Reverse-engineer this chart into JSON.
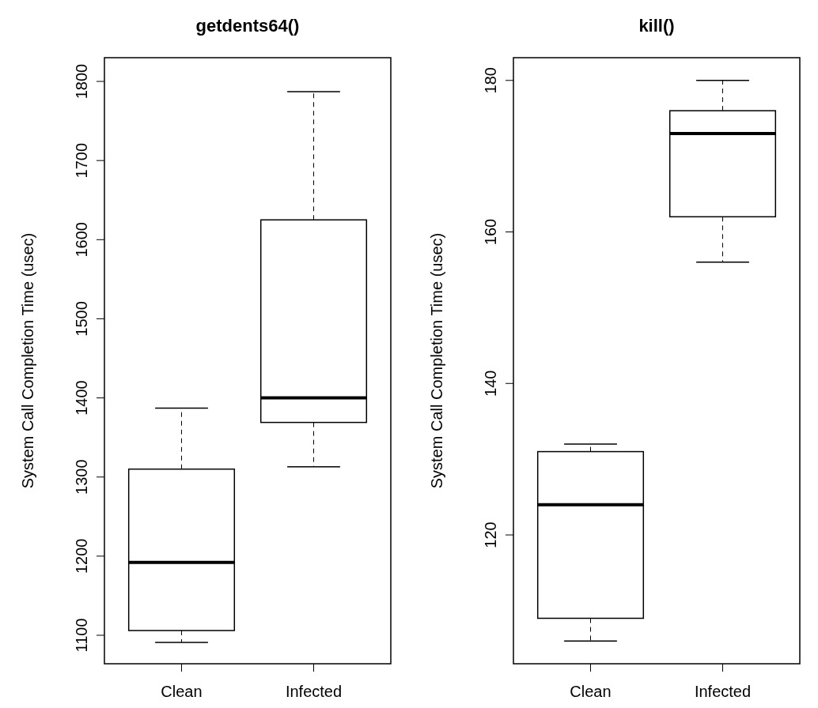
{
  "chart_data": [
    {
      "type": "box",
      "title": "getdents64()",
      "ylabel": "System Call Completion Time (usec)",
      "categories": [
        "Clean",
        "Infected"
      ],
      "ylim": [
        1064,
        1830
      ],
      "yticks": [
        1100,
        1200,
        1300,
        1400,
        1500,
        1600,
        1700,
        1800
      ],
      "grid": false,
      "boxes": [
        {
          "low": 1091,
          "q1": 1106,
          "median": 1192,
          "q3": 1310,
          "high": 1387
        },
        {
          "low": 1313,
          "q1": 1369,
          "median": 1400,
          "q3": 1625,
          "high": 1787
        }
      ]
    },
    {
      "type": "box",
      "title": "kill()",
      "ylabel": "System Call Completion Time (usec)",
      "categories": [
        "Clean",
        "Infected"
      ],
      "ylim": [
        103,
        183
      ],
      "yticks": [
        120,
        140,
        160,
        180
      ],
      "grid": false,
      "boxes": [
        {
          "low": 106,
          "q1": 109,
          "median": 124,
          "q3": 131,
          "high": 132
        },
        {
          "low": 156,
          "q1": 162,
          "median": 173,
          "q3": 176,
          "high": 180
        }
      ]
    }
  ]
}
